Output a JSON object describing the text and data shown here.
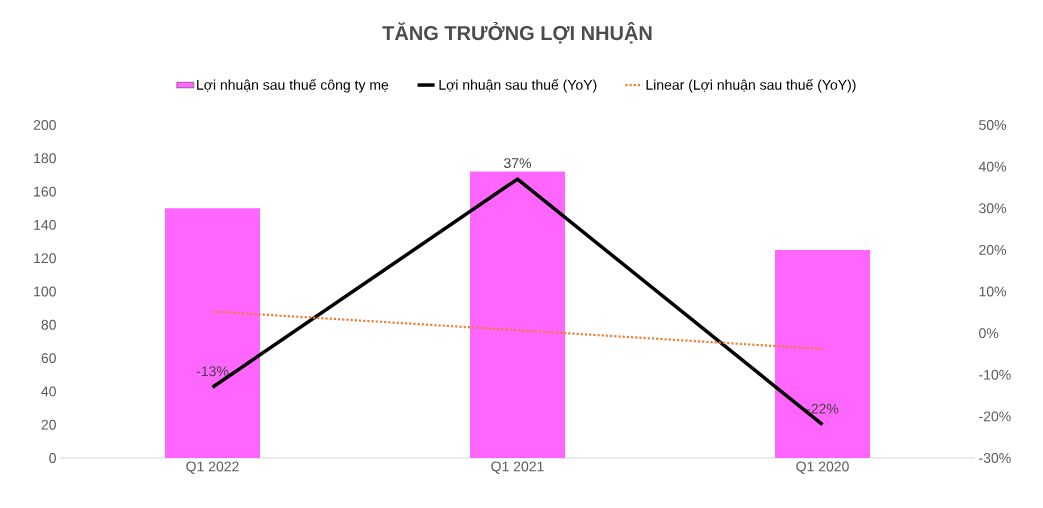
{
  "chart_data": {
    "type": "bar",
    "title": "TĂNG TRƯỞNG LỢI NHUẬN",
    "categories": [
      "Q1 2022",
      "Q1 2021",
      "Q1 2020"
    ],
    "series": [
      {
        "name": "Lợi nhuận sau thuế công ty mẹ",
        "color": "#ff66ff",
        "values": [
          150,
          172,
          125
        ]
      },
      {
        "name": "Lợi nhuận sau thuế (YoY)",
        "type": "line",
        "axis": "y2",
        "color": "#000000",
        "line_style": "solid",
        "values": [
          -13,
          37,
          -22
        ],
        "value_labels": [
          "-13%",
          "37%",
          "-22%"
        ]
      },
      {
        "name": "Linear (Lợi nhuận sau thuế (YoY))",
        "type": "line",
        "axis": "y2",
        "color": "#ed7d31",
        "line_style": "dotted",
        "values": [
          5.2,
          0.7,
          -3.8
        ]
      }
    ],
    "ylim": [
      0,
      200
    ],
    "yticks": [
      0,
      20,
      40,
      60,
      80,
      100,
      120,
      140,
      160,
      180,
      200
    ],
    "y2lim": [
      -30,
      50
    ],
    "y2ticks": [
      {
        "value": -30,
        "label": "-30%"
      },
      {
        "value": -20,
        "label": "-20%"
      },
      {
        "value": -10,
        "label": "-10%"
      },
      {
        "value": 0,
        "label": "0%"
      },
      {
        "value": 10,
        "label": "10%"
      },
      {
        "value": 20,
        "label": "20%"
      },
      {
        "value": 30,
        "label": "30%"
      },
      {
        "value": 40,
        "label": "40%"
      },
      {
        "value": 50,
        "label": "50%"
      }
    ],
    "grid": false,
    "legend": "top",
    "marker": "none"
  }
}
